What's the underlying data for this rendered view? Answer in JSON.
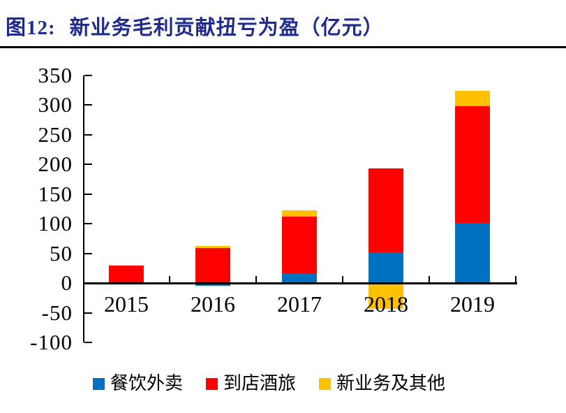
{
  "figure": {
    "label": "图12:",
    "title": "新业务毛利贡献扭亏为盈（亿元）"
  },
  "colors": {
    "title_navy": "#1F2B8C",
    "axis_black": "#000000",
    "series_blue": "#0070C0",
    "series_red": "#FF0000",
    "series_yellow": "#FFC000"
  },
  "chart_data": {
    "type": "bar",
    "stacked": true,
    "title": "新业务毛利贡献扭亏为盈（亿元）",
    "xlabel": "",
    "ylabel": "",
    "categories": [
      "2015",
      "2016",
      "2017",
      "2018",
      "2019"
    ],
    "series": [
      {
        "name": "餐饮外卖",
        "color": "#0070C0",
        "values": [
          -2,
          -4,
          17,
          52,
          102
        ]
      },
      {
        "name": "到店酒旅",
        "color": "#FF0000",
        "values": [
          30,
          59,
          95,
          141,
          196
        ]
      },
      {
        "name": "新业务及其他",
        "color": "#FFC000",
        "values": [
          0,
          4,
          11,
          -43,
          26
        ]
      }
    ],
    "ylim": [
      -100,
      350
    ],
    "ytick_step": 50,
    "yticks": [
      350,
      300,
      250,
      200,
      150,
      100,
      50,
      0,
      -50,
      -100
    ],
    "legend_position": "bottom",
    "grid": false
  }
}
